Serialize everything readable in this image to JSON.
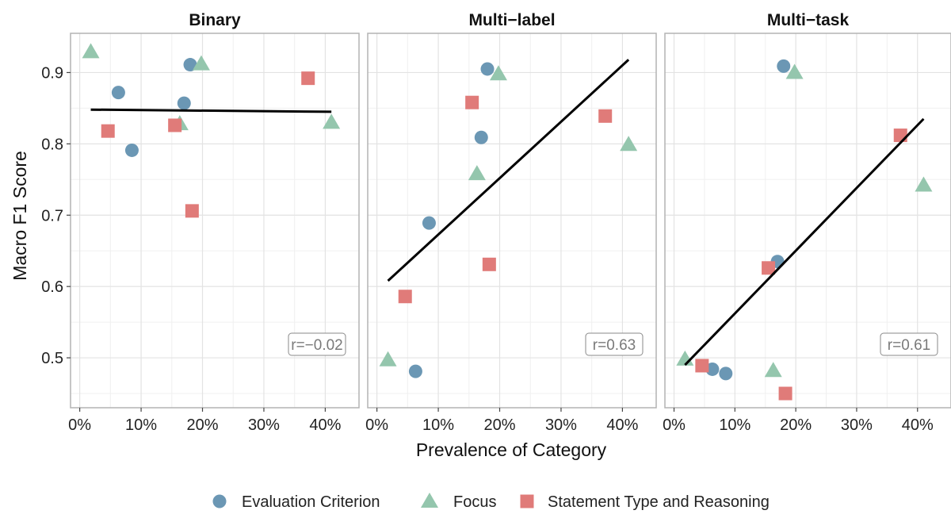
{
  "chart_data": {
    "type": "scatter",
    "ylabel": "Macro F1 Score",
    "xlabel": "Prevalence of Category",
    "xlim": [
      -0.015,
      0.455
    ],
    "ylim": [
      0.43,
      0.955
    ],
    "x_ticks": [
      {
        "value": 0.0,
        "label": "0%"
      },
      {
        "value": 0.1,
        "label": "10%"
      },
      {
        "value": 0.2,
        "label": "20%"
      },
      {
        "value": 0.3,
        "label": "30%"
      },
      {
        "value": 0.4,
        "label": "40%"
      }
    ],
    "y_ticks": [
      {
        "value": 0.5,
        "label": "0.5"
      },
      {
        "value": 0.6,
        "label": "0.6"
      },
      {
        "value": 0.7,
        "label": "0.7"
      },
      {
        "value": 0.8,
        "label": "0.8"
      },
      {
        "value": 0.9,
        "label": "0.9"
      }
    ],
    "grid": true,
    "legend_position": "bottom",
    "colors": {
      "Evaluation Criterion": "#6b97b4",
      "Focus": "#94c6ad",
      "Statement Type and Reasoning": "#e07b79"
    },
    "shapes": {
      "Evaluation Criterion": "circle",
      "Focus": "triangle",
      "Statement Type and Reasoning": "square"
    },
    "legend": [
      {
        "name": "Evaluation Criterion"
      },
      {
        "name": "Focus"
      },
      {
        "name": "Statement Type and Reasoning"
      }
    ],
    "panels": [
      {
        "title": "Binary",
        "annotation": "r=−0.02",
        "fit_line": {
          "x": [
            0.018,
            0.41
          ],
          "y": [
            0.848,
            0.845
          ]
        },
        "series": [
          {
            "name": "Evaluation Criterion",
            "x": [
              0.063,
              0.085,
              0.17,
              0.18
            ],
            "y": [
              0.872,
              0.791,
              0.857,
              0.911
            ]
          },
          {
            "name": "Focus",
            "x": [
              0.018,
              0.163,
              0.198,
              0.41
            ],
            "y": [
              0.929,
              0.828,
              0.912,
              0.83
            ]
          },
          {
            "name": "Statement Type and Reasoning",
            "x": [
              0.046,
              0.155,
              0.183,
              0.372
            ],
            "y": [
              0.818,
              0.826,
              0.706,
              0.892
            ]
          }
        ]
      },
      {
        "title": "Multi−label",
        "annotation": "r=0.63",
        "fit_line": {
          "x": [
            0.018,
            0.41
          ],
          "y": [
            0.608,
            0.918
          ]
        },
        "series": [
          {
            "name": "Evaluation Criterion",
            "x": [
              0.063,
              0.085,
              0.17,
              0.18
            ],
            "y": [
              0.481,
              0.689,
              0.809,
              0.905
            ]
          },
          {
            "name": "Focus",
            "x": [
              0.018,
              0.163,
              0.198,
              0.41
            ],
            "y": [
              0.497,
              0.758,
              0.898,
              0.799
            ]
          },
          {
            "name": "Statement Type and Reasoning",
            "x": [
              0.046,
              0.155,
              0.183,
              0.372
            ],
            "y": [
              0.586,
              0.858,
              0.631,
              0.839
            ]
          }
        ]
      },
      {
        "title": "Multi−task",
        "annotation": "r=0.61",
        "fit_line": {
          "x": [
            0.018,
            0.41
          ],
          "y": [
            0.49,
            0.835
          ]
        },
        "series": [
          {
            "name": "Evaluation Criterion",
            "x": [
              0.063,
              0.085,
              0.17,
              0.18
            ],
            "y": [
              0.484,
              0.478,
              0.635,
              0.909
            ]
          },
          {
            "name": "Focus",
            "x": [
              0.018,
              0.163,
              0.198,
              0.41
            ],
            "y": [
              0.498,
              0.482,
              0.9,
              0.742
            ]
          },
          {
            "name": "Statement Type and Reasoning",
            "x": [
              0.046,
              0.155,
              0.183,
              0.372
            ],
            "y": [
              0.489,
              0.626,
              0.45,
              0.812
            ]
          }
        ]
      }
    ]
  }
}
